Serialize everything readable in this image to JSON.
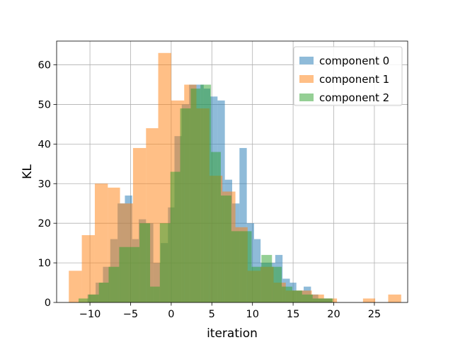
{
  "chart_data": {
    "type": "histogram",
    "xlabel": "iteration",
    "ylabel": "KL",
    "xlim": [
      -14.1,
      29.1
    ],
    "ylim": [
      0,
      66
    ],
    "xticks": [
      -10,
      -5,
      0,
      5,
      10,
      15,
      20,
      25
    ],
    "yticks": [
      0,
      10,
      20,
      30,
      40,
      50,
      60
    ],
    "grid": true,
    "legend_position": "top-right",
    "series": [
      {
        "name": "component 0",
        "color": "#1f77b4",
        "opacity": 0.5,
        "bins": [
          [
            -10.3,
            -9.3,
            2
          ],
          [
            -9.3,
            -8.4,
            5
          ],
          [
            -8.4,
            -7.5,
            9
          ],
          [
            -7.5,
            -6.6,
            16
          ],
          [
            -6.6,
            -5.7,
            25
          ],
          [
            -5.7,
            -4.8,
            27
          ],
          [
            -4.8,
            -4.0,
            16
          ],
          [
            -4.0,
            -3.1,
            21
          ],
          [
            -3.1,
            -2.2,
            20
          ],
          [
            -2.2,
            -1.3,
            10
          ],
          [
            -1.3,
            -0.4,
            15
          ],
          [
            -0.4,
            0.4,
            24
          ],
          [
            0.4,
            1.3,
            42
          ],
          [
            1.3,
            2.2,
            50
          ],
          [
            2.2,
            3.1,
            55
          ],
          [
            3.1,
            4.0,
            55
          ],
          [
            4.0,
            4.8,
            54
          ],
          [
            4.8,
            5.7,
            52
          ],
          [
            5.7,
            6.6,
            51
          ],
          [
            6.6,
            7.5,
            31
          ],
          [
            7.5,
            8.4,
            25
          ],
          [
            8.4,
            9.3,
            39
          ],
          [
            9.3,
            10.2,
            20
          ],
          [
            10.2,
            11.0,
            16
          ],
          [
            11.0,
            11.9,
            10
          ],
          [
            11.9,
            12.8,
            10
          ],
          [
            12.8,
            13.7,
            12
          ],
          [
            13.7,
            14.6,
            6
          ],
          [
            14.6,
            15.4,
            5
          ],
          [
            15.4,
            16.3,
            3
          ],
          [
            16.3,
            17.2,
            4
          ],
          [
            17.2,
            18.1,
            2
          ],
          [
            18.1,
            19.0,
            1
          ],
          [
            19.0,
            19.8,
            1
          ]
        ]
      },
      {
        "name": "component 1",
        "color": "#ff7f0e",
        "opacity": 0.5,
        "bins": [
          [
            -12.6,
            -11.0,
            8
          ],
          [
            -11.0,
            -9.4,
            17
          ],
          [
            -9.4,
            -7.8,
            30
          ],
          [
            -7.8,
            -6.3,
            29
          ],
          [
            -6.3,
            -4.7,
            25
          ],
          [
            -4.7,
            -3.1,
            39
          ],
          [
            -3.1,
            -1.6,
            44
          ],
          [
            -1.6,
            0.0,
            63
          ],
          [
            0.0,
            1.6,
            51
          ],
          [
            1.6,
            3.1,
            55
          ],
          [
            3.1,
            4.7,
            49
          ],
          [
            4.7,
            6.3,
            32
          ],
          [
            6.3,
            7.9,
            28
          ],
          [
            7.9,
            9.4,
            19
          ],
          [
            9.4,
            11.0,
            8
          ],
          [
            11.0,
            12.6,
            9
          ],
          [
            12.6,
            14.1,
            5
          ],
          [
            14.1,
            15.7,
            3
          ],
          [
            15.7,
            17.3,
            3
          ],
          [
            17.3,
            18.8,
            2
          ],
          [
            18.8,
            20.4,
            1
          ],
          [
            20.4,
            22.0,
            0
          ],
          [
            22.0,
            23.6,
            0
          ],
          [
            23.6,
            25.1,
            1
          ],
          [
            25.1,
            26.7,
            0
          ],
          [
            26.7,
            28.3,
            2
          ]
        ]
      },
      {
        "name": "component 2",
        "color": "#2ca02c",
        "opacity": 0.5,
        "bins": [
          [
            -11.4,
            -10.2,
            1
          ],
          [
            -10.2,
            -8.9,
            2
          ],
          [
            -8.9,
            -7.7,
            5
          ],
          [
            -7.7,
            -6.4,
            9
          ],
          [
            -6.4,
            -5.2,
            14
          ],
          [
            -5.2,
            -3.9,
            14
          ],
          [
            -3.9,
            -2.6,
            20
          ],
          [
            -2.6,
            -1.4,
            4
          ],
          [
            -1.4,
            -0.1,
            20
          ],
          [
            -0.1,
            1.1,
            33
          ],
          [
            1.1,
            2.4,
            49
          ],
          [
            2.4,
            3.6,
            54
          ],
          [
            3.6,
            4.9,
            55
          ],
          [
            4.9,
            6.1,
            38
          ],
          [
            6.1,
            7.4,
            27
          ],
          [
            7.4,
            8.6,
            18
          ],
          [
            8.6,
            9.9,
            18
          ],
          [
            9.9,
            11.1,
            9
          ],
          [
            11.1,
            12.4,
            12
          ],
          [
            12.4,
            13.6,
            9
          ],
          [
            13.6,
            14.9,
            4
          ],
          [
            14.9,
            16.1,
            3
          ],
          [
            16.1,
            17.4,
            2
          ],
          [
            17.4,
            18.6,
            1
          ],
          [
            18.6,
            19.9,
            1
          ]
        ]
      }
    ]
  }
}
